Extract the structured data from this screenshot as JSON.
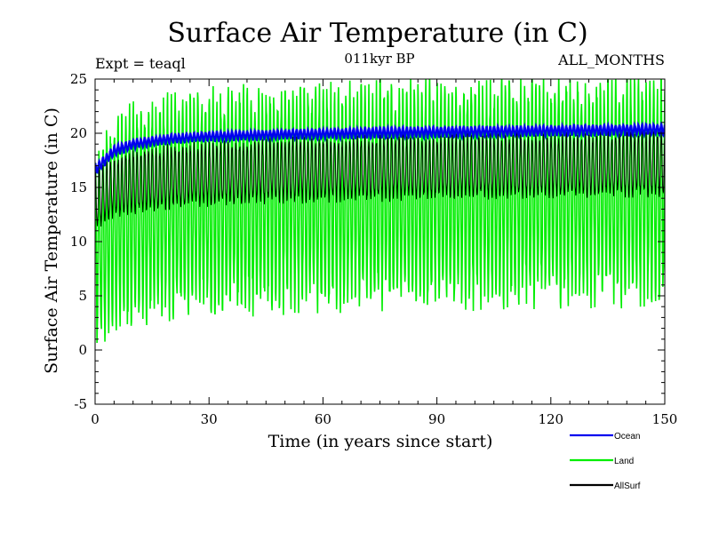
{
  "chart_data": {
    "type": "line",
    "title": "Surface Air Temperature (in C)",
    "subtitle": "011kyr BP",
    "left_note": "Expt = teaql",
    "right_note": "ALL_MONTHS",
    "xlabel": "Time (in years since start)",
    "ylabel": "Surface Air Temperature (in C)",
    "xlim": [
      0,
      150
    ],
    "ylim": [
      -5,
      25
    ],
    "x_ticks": [
      0,
      30,
      60,
      90,
      120,
      150
    ],
    "y_ticks": [
      -5,
      0,
      5,
      10,
      15,
      20,
      25
    ],
    "x_tick_labels": [
      "0",
      "30",
      "60",
      "90",
      "120",
      "150"
    ],
    "y_tick_labels": [
      "-5",
      "0",
      "5",
      "10",
      "15",
      "20",
      "25"
    ],
    "x_resolution_per_year": 12,
    "legend_position": "bottom-right",
    "series": [
      {
        "name": "Land",
        "color": "#00ee00",
        "description": "monthly seasonal cycle",
        "max_envelope": {
          "x": [
            0,
            5,
            10,
            20,
            30,
            50,
            75,
            100,
            125,
            150
          ],
          "y": [
            17.5,
            20.8,
            21.8,
            22.6,
            23.0,
            23.4,
            23.7,
            24.0,
            24.1,
            24.2
          ]
        },
        "min_envelope": {
          "x": [
            0,
            5,
            10,
            20,
            30,
            50,
            75,
            100,
            125,
            150
          ],
          "y": [
            0.8,
            2.6,
            3.2,
            4.0,
            4.4,
            4.8,
            5.0,
            5.2,
            5.4,
            5.5
          ]
        }
      },
      {
        "name": "AllSurf",
        "color": "#000000",
        "description": "monthly seasonal cycle",
        "max_envelope": {
          "x": [
            0,
            5,
            10,
            20,
            30,
            50,
            75,
            100,
            125,
            150
          ],
          "y": [
            16.2,
            17.6,
            18.2,
            18.6,
            18.9,
            19.2,
            19.4,
            19.6,
            19.7,
            19.8
          ]
        },
        "min_envelope": {
          "x": [
            0,
            5,
            10,
            20,
            30,
            50,
            75,
            100,
            125,
            150
          ],
          "y": [
            11.2,
            12.4,
            12.9,
            13.3,
            13.6,
            13.9,
            14.1,
            14.3,
            14.4,
            14.5
          ]
        }
      },
      {
        "name": "Ocean",
        "color": "#0000ee",
        "description": "monthly seasonal cycle",
        "max_envelope": {
          "x": [
            0,
            5,
            10,
            20,
            30,
            50,
            75,
            100,
            125,
            150
          ],
          "y": [
            17.0,
            18.8,
            19.4,
            19.9,
            20.1,
            20.3,
            20.5,
            20.6,
            20.7,
            20.8
          ]
        },
        "min_envelope": {
          "x": [
            0,
            5,
            10,
            20,
            30,
            50,
            75,
            100,
            125,
            150
          ],
          "y": [
            16.2,
            17.9,
            18.6,
            19.1,
            19.3,
            19.5,
            19.6,
            19.7,
            19.8,
            19.9
          ]
        }
      }
    ],
    "legend": [
      {
        "name": "Ocean",
        "color": "#0000ee"
      },
      {
        "name": "Land",
        "color": "#00ee00"
      },
      {
        "name": "AllSurf",
        "color": "#000000"
      }
    ]
  }
}
